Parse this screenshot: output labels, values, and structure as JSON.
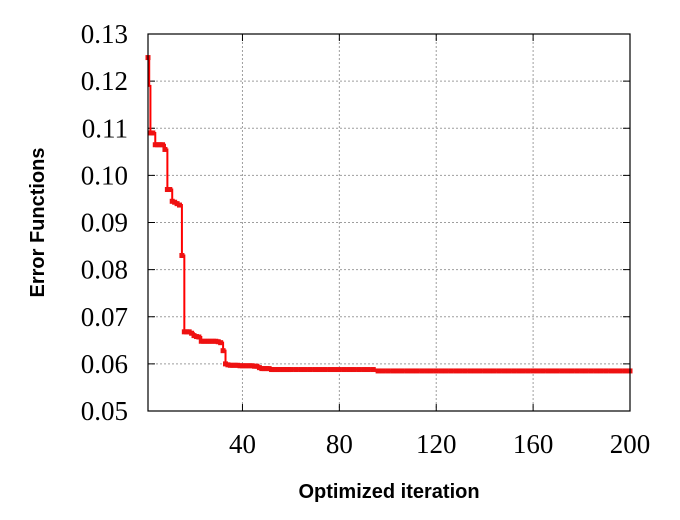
{
  "chart_data": {
    "type": "line",
    "title": "",
    "xlabel": "Optimized iteration",
    "ylabel": "Error Functions",
    "xlim": [
      1,
      200
    ],
    "ylim": [
      0.05,
      0.13
    ],
    "x_ticks": [
      40,
      80,
      120,
      160,
      200
    ],
    "y_ticks": [
      0.05,
      0.06,
      0.07,
      0.08,
      0.09,
      0.1,
      0.11,
      0.12,
      0.13
    ],
    "y_tick_labels": [
      "0.05",
      "0.06",
      "0.07",
      "0.08",
      "0.09",
      "0.10",
      "0.11",
      "0.12",
      "0.13"
    ],
    "grid": true,
    "series_color": "#ff0000",
    "series": [
      {
        "x": [
          1,
          1.5,
          2,
          3,
          4,
          5,
          6,
          7,
          8,
          9,
          10,
          11,
          12,
          13,
          14,
          15,
          16,
          17,
          18,
          19,
          20,
          21,
          22,
          23,
          24,
          25,
          26,
          27,
          28,
          29,
          30,
          31,
          32,
          33,
          34,
          35,
          36,
          37,
          38,
          39,
          40,
          41,
          42,
          43,
          44,
          45,
          46,
          47,
          48,
          49,
          50,
          52,
          54,
          56,
          58,
          60,
          65,
          70,
          80,
          90,
          95,
          100,
          110,
          120,
          130,
          140,
          150,
          160,
          170,
          180,
          190,
          200
        ],
        "y": [
          0.125,
          0.119,
          0.109,
          0.109,
          0.1065,
          0.1065,
          0.1065,
          0.1065,
          0.1055,
          0.097,
          0.097,
          0.0945,
          0.0943,
          0.094,
          0.0937,
          0.083,
          0.0668,
          0.0668,
          0.0668,
          0.0665,
          0.066,
          0.0658,
          0.0657,
          0.0648,
          0.0648,
          0.0648,
          0.0648,
          0.0648,
          0.0648,
          0.0648,
          0.0647,
          0.0645,
          0.0628,
          0.06,
          0.0598,
          0.0597,
          0.0597,
          0.0597,
          0.0597,
          0.0596,
          0.0596,
          0.0596,
          0.0596,
          0.0596,
          0.0596,
          0.0595,
          0.0595,
          0.0592,
          0.059,
          0.059,
          0.059,
          0.0588,
          0.0588,
          0.0588,
          0.0588,
          0.0588,
          0.0588,
          0.0588,
          0.0588,
          0.0588,
          0.0585,
          0.0585,
          0.0585,
          0.0585,
          0.0585,
          0.0585,
          0.0585,
          0.0585,
          0.0585,
          0.0585,
          0.0585,
          0.0585
        ]
      }
    ]
  }
}
